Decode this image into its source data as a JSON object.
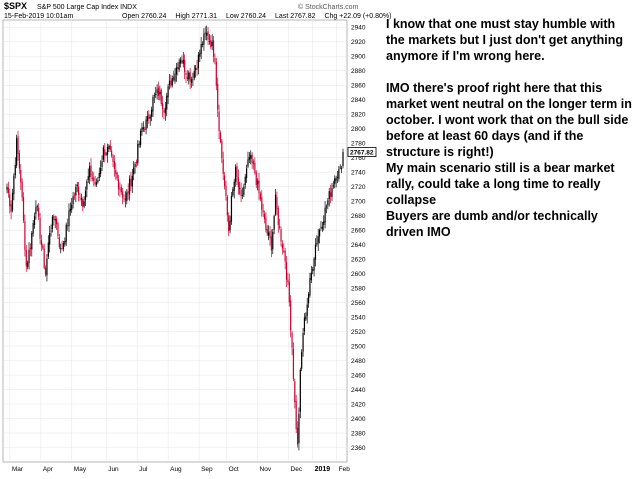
{
  "header": {
    "symbol": "$SPX",
    "symbol_name": "S&P 500 Large Cap Index",
    "exchange": "INDX",
    "datetime": "15-Feb-2019 10:01am",
    "open_label": "Open",
    "open_value": "2760.24",
    "high_label": "High",
    "high_value": "2771.31",
    "low_label": "Low",
    "low_value": "2760.24",
    "last_label": "Last",
    "last_value": "2767.82",
    "chg_label": "Chg",
    "chg_value": "+22.09 (+0.80%)",
    "brand": "© StockCharts.com"
  },
  "comment": {
    "lines": [
      "I know that one must stay humble with the markets but I just don't get anything anymore if I'm wrong here.",
      "",
      "IMO there's proof right here that this market went neutral on the longer term in october. I wont work that on the bull side before at least 60 days (and if the structure is right!)",
      "My main scenario still is a bear market rally, could take a long time to really collapse",
      "Buyers are dumb and/or technically driven IMO"
    ]
  },
  "chart_data": {
    "type": "candlestick",
    "title": "",
    "ylim": [
      2340,
      2950
    ],
    "y_ticks": [
      2360,
      2380,
      2400,
      2420,
      2440,
      2460,
      2480,
      2500,
      2520,
      2540,
      2560,
      2580,
      2600,
      2620,
      2640,
      2660,
      2680,
      2700,
      2720,
      2740,
      2760,
      2780,
      2800,
      2820,
      2840,
      2860,
      2880,
      2900,
      2920,
      2940
    ],
    "x_ticks": [
      {
        "label": "Mar",
        "pos": 0.02
      },
      {
        "label": "Apr",
        "pos": 0.11
      },
      {
        "label": "May",
        "pos": 0.2
      },
      {
        "label": "Jun",
        "pos": 0.3
      },
      {
        "label": "Jul",
        "pos": 0.39
      },
      {
        "label": "Aug",
        "pos": 0.48
      },
      {
        "label": "Sep",
        "pos": 0.57
      },
      {
        "label": "Oct",
        "pos": 0.65
      },
      {
        "label": "Nov",
        "pos": 0.74
      },
      {
        "label": "Dec",
        "pos": 0.83
      },
      {
        "label": "2019",
        "pos": 0.9,
        "bold": true
      },
      {
        "label": "Feb",
        "pos": 0.97
      }
    ],
    "last_price_label": "2767.82",
    "last_price": 2767.82,
    "up_color": "#000000",
    "down_color": "#cc0033",
    "anchors": [
      [
        0,
        2720
      ],
      [
        3,
        2690
      ],
      [
        7,
        2780
      ],
      [
        10,
        2730
      ],
      [
        14,
        2610
      ],
      [
        17,
        2640
      ],
      [
        21,
        2700
      ],
      [
        25,
        2640
      ],
      [
        28,
        2600
      ],
      [
        31,
        2660
      ],
      [
        35,
        2680
      ],
      [
        39,
        2630
      ],
      [
        43,
        2660
      ],
      [
        47,
        2700
      ],
      [
        51,
        2720
      ],
      [
        55,
        2700
      ],
      [
        60,
        2740
      ],
      [
        65,
        2720
      ],
      [
        70,
        2770
      ],
      [
        74,
        2770
      ],
      [
        78,
        2740
      ],
      [
        82,
        2720
      ],
      [
        86,
        2700
      ],
      [
        90,
        2730
      ],
      [
        94,
        2760
      ],
      [
        98,
        2800
      ],
      [
        102,
        2810
      ],
      [
        106,
        2840
      ],
      [
        110,
        2850
      ],
      [
        114,
        2830
      ],
      [
        118,
        2860
      ],
      [
        122,
        2880
      ],
      [
        126,
        2900
      ],
      [
        130,
        2880
      ],
      [
        134,
        2870
      ],
      [
        138,
        2890
      ],
      [
        142,
        2920
      ],
      [
        145,
        2930
      ],
      [
        148,
        2920
      ],
      [
        151,
        2900
      ],
      [
        153,
        2830
      ],
      [
        155,
        2780
      ],
      [
        157,
        2740
      ],
      [
        159,
        2700
      ],
      [
        161,
        2660
      ],
      [
        163,
        2700
      ],
      [
        166,
        2740
      ],
      [
        170,
        2700
      ],
      [
        173,
        2730
      ],
      [
        176,
        2760
      ],
      [
        180,
        2740
      ],
      [
        184,
        2700
      ],
      [
        188,
        2660
      ],
      [
        192,
        2640
      ],
      [
        195,
        2700
      ],
      [
        198,
        2660
      ],
      [
        202,
        2620
      ],
      [
        205,
        2560
      ],
      [
        207,
        2500
      ],
      [
        209,
        2420
      ],
      [
        211,
        2360
      ],
      [
        213,
        2460
      ],
      [
        215,
        2520
      ],
      [
        218,
        2560
      ],
      [
        221,
        2600
      ],
      [
        224,
        2640
      ],
      [
        227,
        2660
      ],
      [
        230,
        2680
      ],
      [
        233,
        2700
      ],
      [
        236,
        2720
      ],
      [
        239,
        2740
      ],
      [
        242,
        2740
      ],
      [
        244,
        2768
      ]
    ],
    "noise_seed": 7,
    "bars": 245
  }
}
